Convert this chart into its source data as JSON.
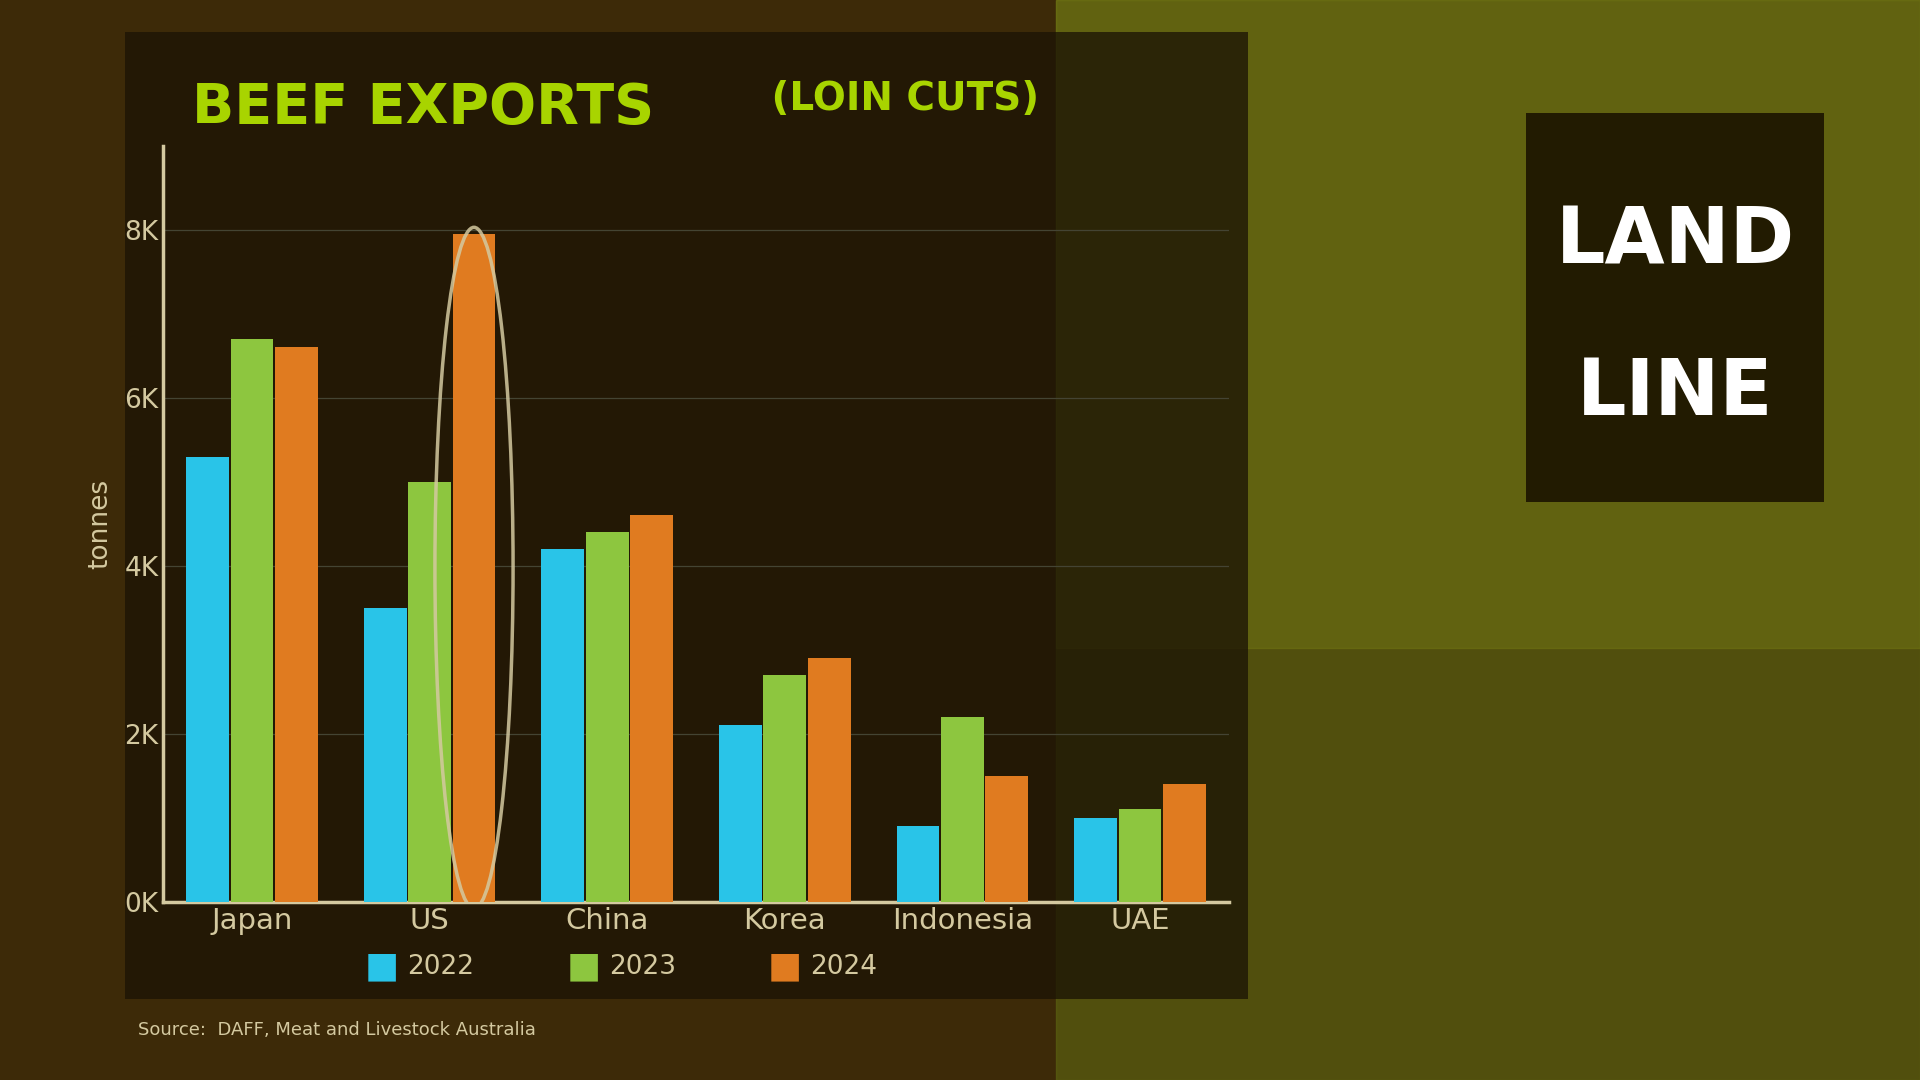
{
  "title_bold": "BEEF EXPORTS",
  "title_light": " (LOIN CUTS)",
  "categories": [
    "Japan",
    "US",
    "China",
    "Korea",
    "Indonesia",
    "UAE"
  ],
  "series": {
    "2022": [
      5300,
      3500,
      4200,
      2100,
      900,
      1000
    ],
    "2023": [
      6700,
      5000,
      4400,
      2700,
      2200,
      1100
    ],
    "2024": [
      6600,
      7950,
      4600,
      2900,
      1500,
      1400
    ]
  },
  "colors": {
    "2022": "#29C4E8",
    "2023": "#8DC63F",
    "2024": "#E07B20"
  },
  "ylabel": "tonnes",
  "ylim": [
    0,
    9000
  ],
  "yticks": [
    0,
    2000,
    4000,
    6000,
    8000
  ],
  "ytick_labels": [
    "0K",
    "2K",
    "4K",
    "6K",
    "8K"
  ],
  "bg_left": "#3d2b0a",
  "bg_right_top": "#7a7a20",
  "bg_right_bottom": "#4a4a10",
  "chart_panel_color": "#1c1405",
  "chart_panel_alpha": 0.78,
  "axis_color": "#d4c9a0",
  "text_color": "#d4c9a0",
  "title_color": "#a8d400",
  "grid_color": "#444433",
  "source_text": "Source:  DAFF, Meat and Livestock Australia",
  "circle_color": "#d4c9a0",
  "logo_bg": "#1a1200",
  "logo_text": "white"
}
